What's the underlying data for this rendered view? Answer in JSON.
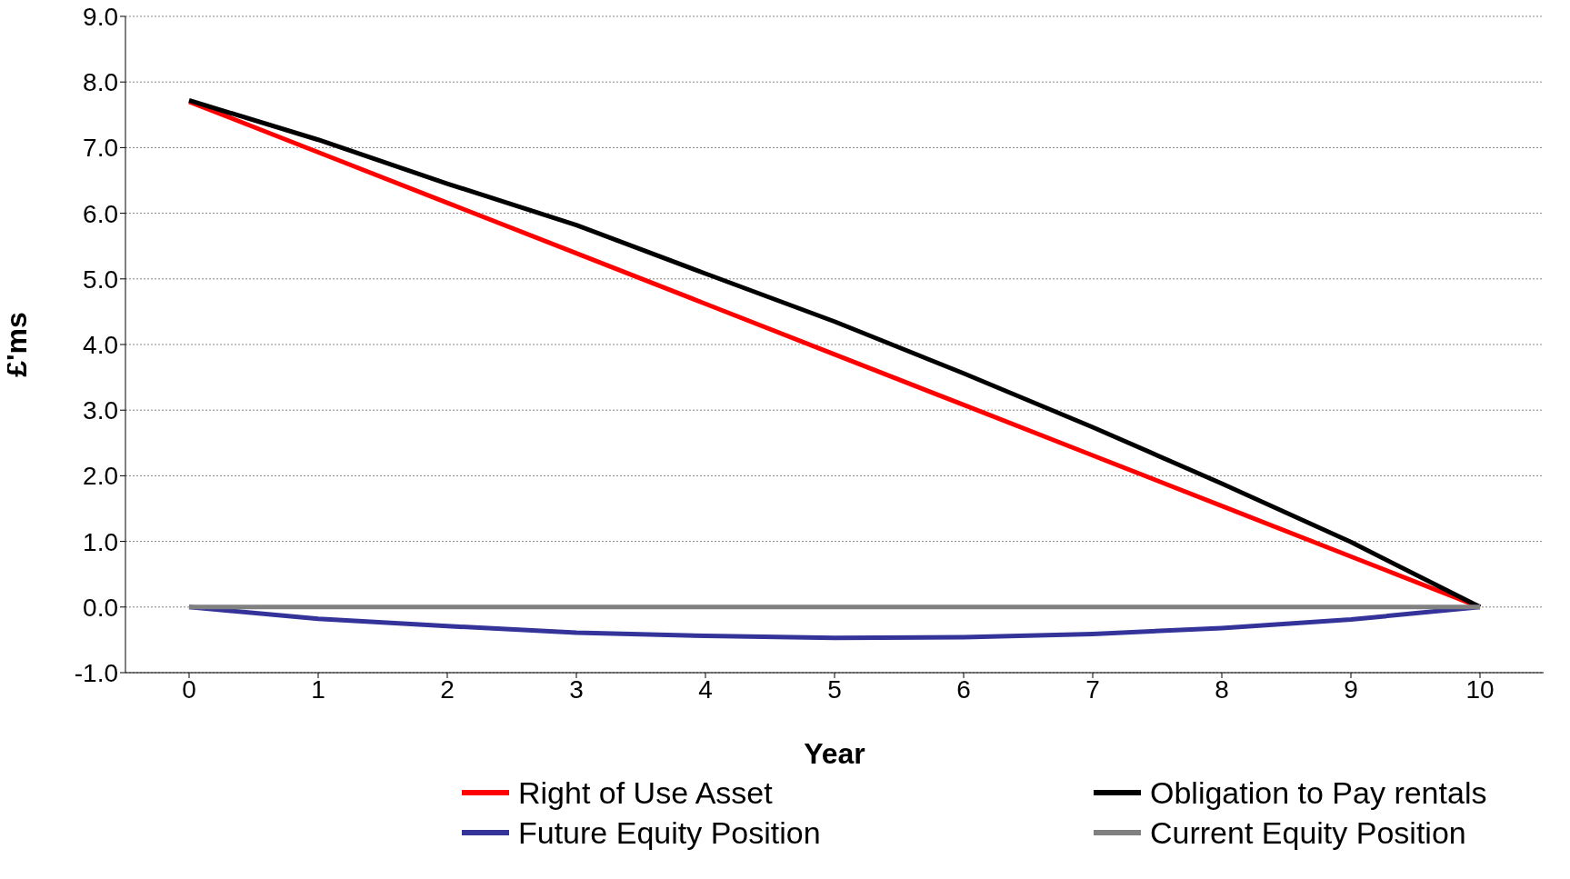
{
  "chart_data": {
    "type": "line",
    "xlabel": "Year",
    "ylabel": "£'ms",
    "categories": [
      "0",
      "1",
      "2",
      "3",
      "4",
      "5",
      "6",
      "7",
      "8",
      "9",
      "10"
    ],
    "series": [
      {
        "name": "Right of Use Asset",
        "color": "#ff0000",
        "values": [
          7.7,
          6.93,
          6.16,
          5.39,
          4.62,
          3.85,
          3.08,
          2.31,
          1.54,
          0.77,
          0
        ]
      },
      {
        "name": "Obligation to Pay rentals",
        "color": "#000000",
        "values": [
          7.72,
          7.12,
          6.45,
          5.82,
          5.08,
          4.35,
          3.56,
          2.74,
          1.88,
          0.99,
          0
        ]
      },
      {
        "name": "Future Equity Position",
        "color": "#333399",
        "values": [
          0,
          -0.18,
          -0.29,
          -0.39,
          -0.44,
          -0.47,
          -0.46,
          -0.41,
          -0.32,
          -0.19,
          0
        ]
      },
      {
        "name": "Current Equity Position",
        "color": "#808080",
        "values": [
          0,
          0,
          0,
          0,
          0,
          0,
          0,
          0,
          0,
          0,
          0
        ]
      }
    ],
    "ylim": [
      -1,
      9
    ],
    "yticks": [
      {
        "value": -1,
        "label": "-1.0"
      },
      {
        "value": 0,
        "label": "0.0"
      },
      {
        "value": 1,
        "label": "1.0"
      },
      {
        "value": 2,
        "label": "2.0"
      },
      {
        "value": 3,
        "label": "3.0"
      },
      {
        "value": 4,
        "label": "4.0"
      },
      {
        "value": 5,
        "label": "5.0"
      },
      {
        "value": 6,
        "label": "6.0"
      },
      {
        "value": 7,
        "label": "7.0"
      },
      {
        "value": 8,
        "label": "8.0"
      },
      {
        "value": 9,
        "label": "9.0"
      }
    ],
    "grid": "y",
    "legend": "bottom",
    "marker": "none",
    "line_style": "solid"
  }
}
